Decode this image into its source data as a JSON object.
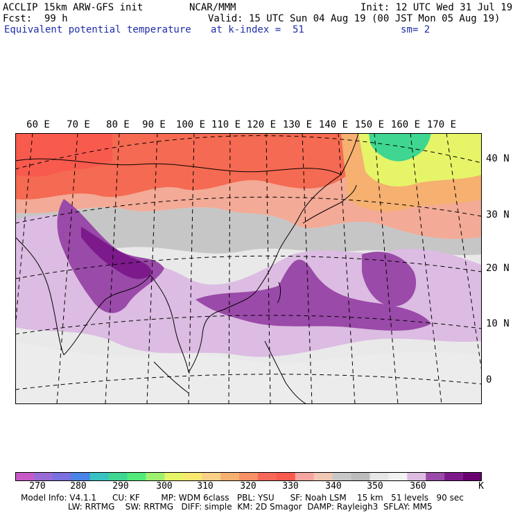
{
  "header": {
    "model": "ACCLIP 15km ARW-GFS init",
    "org": "NCAR/MMM",
    "init": "Init: 12 UTC Wed 31 Jul 19",
    "fcst_label": "Fcst:",
    "fcst_value": "99 h",
    "valid": "Valid: 15 UTC Sun 04 Aug 19 (00 JST Mon 05 Aug 19)",
    "field": "Equivalent potential temperature",
    "level": "at k-index =  51",
    "smooth": "sm= 2"
  },
  "map": {
    "lon_labels": [
      "60 E",
      "70 E",
      "80 E",
      "90 E",
      "100 E",
      "110 E",
      "120 E",
      "130 E",
      "140 E",
      "150 E",
      "160 E",
      "170 E"
    ],
    "lat_labels": [
      "40 N",
      "30 N",
      "20 N",
      "10 N",
      "0"
    ]
  },
  "colorbar": {
    "unit": "K",
    "ticks": [
      "270",
      "280",
      "290",
      "300",
      "310",
      "320",
      "330",
      "340",
      "350",
      "360"
    ],
    "colors": [
      "#c85ac8",
      "#9a6ad6",
      "#7a70e0",
      "#4a84e6",
      "#38c2c2",
      "#3ed690",
      "#52ea7a",
      "#a0f070",
      "#e6f468",
      "#f8e870",
      "#f8d088",
      "#f6b070",
      "#f89068",
      "#f86858",
      "#f85a4e",
      "#f6a6a0",
      "#f0c8b4",
      "#c8c8c8",
      "#bcbcbc",
      "#e6e6e6",
      "#f2f2f2",
      "#dcbce2",
      "#9a4aa8",
      "#7c1a8c",
      "#680070"
    ]
  },
  "footer": {
    "line1": "Model Info: V4.1.1      CU: KF        MP: WDM 6class   PBL: YSU      SF: Noah LSM    15 km   51 levels   90 sec",
    "line2": "LW: RRTMG    SW: RRTMG   DIFF: simple  KM: 2D Smagor  DAMP: Rayleigh3  SFLAY: MM5"
  }
}
